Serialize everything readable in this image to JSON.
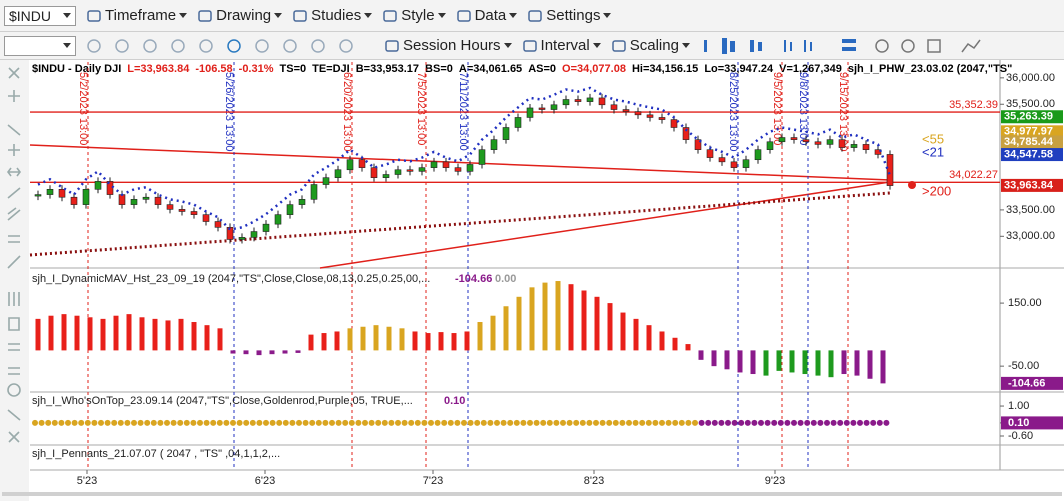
{
  "toolbar": {
    "symbol": "$INDU",
    "menus": [
      "Timeframe",
      "Drawing",
      "Studies",
      "Style",
      "Data",
      "Settings"
    ],
    "tools": [
      "Session Hours",
      "Interval",
      "Scaling"
    ]
  },
  "chart_data": [
    {
      "type": "candlestick",
      "header": [
        {
          "text": "$INDU - Daily  DJI",
          "color": "#000000"
        },
        {
          "text": "L=33,963.84",
          "color": "#e0201a"
        },
        {
          "text": "-106.58",
          "color": "#e0201a"
        },
        {
          "text": "-0.31%",
          "color": "#e0201a"
        },
        {
          "text": "TS=0",
          "color": "#000000"
        },
        {
          "text": "TE=DJI",
          "color": "#000000"
        },
        {
          "text": "B=33,953.17",
          "color": "#000000"
        },
        {
          "text": "BS=0",
          "color": "#000000"
        },
        {
          "text": "A=34,061.65",
          "color": "#000000"
        },
        {
          "text": "AS=0",
          "color": "#000000"
        },
        {
          "text": "O=34,077.08",
          "color": "#e0201a"
        },
        {
          "text": "Hi=34,156.15",
          "color": "#000000"
        },
        {
          "text": "Lo=33,947.24",
          "color": "#000000"
        },
        {
          "text": "V=1,267,349",
          "color": "#000000"
        },
        {
          "text": "sjh_I_PHW_23.03.02 (2047,\"TS\"",
          "color": "#000000"
        }
      ],
      "ylim": [
        32400,
        36300
      ],
      "yticks": [
        {
          "value": 36000,
          "label": "36,000.00"
        },
        {
          "value": 35500,
          "label": "35,500.00"
        },
        {
          "value": 33500,
          "label": "33,500.00"
        },
        {
          "value": 33000,
          "label": "33,000.00"
        }
      ],
      "closes": [
        33790,
        33890,
        33740,
        33600,
        33890,
        34040,
        33790,
        33600,
        33700,
        33740,
        33600,
        33510,
        33470,
        33410,
        33280,
        33170,
        32940,
        32980,
        33090,
        33230,
        33410,
        33600,
        33700,
        33980,
        34110,
        34260,
        34450,
        34300,
        34110,
        34170,
        34260,
        34230,
        34300,
        34410,
        34300,
        34230,
        34360,
        34640,
        34830,
        35060,
        35250,
        35430,
        35400,
        35490,
        35590,
        35550,
        35620,
        35490,
        35400,
        35360,
        35300,
        35250,
        35210,
        35060,
        34830,
        34640,
        34490,
        34410,
        34300,
        34450,
        34640,
        34790,
        34870,
        34830,
        34790,
        34740,
        34830,
        34680,
        34740,
        34640,
        34550,
        33960
      ],
      "up_color": "#1e9a1e",
      "down_color": "#e8201a",
      "levels": [
        {
          "value": 35352.39,
          "label": "35,352.39",
          "color": "#e0201a"
        },
        {
          "value": 34022.27,
          "label": "34,022.27",
          "color": "#e0201a"
        }
      ],
      "price_tags": [
        {
          "value": 35263.39,
          "label": "35,263.39",
          "color": "#1a9a1a"
        },
        {
          "value": 34977.97,
          "label": "34,977.97",
          "color": "#d9a520"
        },
        {
          "value": 34785.44,
          "label": "34,785.44",
          "color": "#c8a040"
        },
        {
          "value": 34547.58,
          "label": "34,547.58",
          "color": "#1f3fbf"
        },
        {
          "value": 33963.84,
          "label": "33,963.84",
          "color": "#d8201a"
        }
      ],
      "ma_labels": [
        {
          "text": "<55",
          "color": "#d9a520"
        },
        {
          "text": "<21",
          "color": "#2030c0"
        },
        {
          "text": ">200",
          "color": "#e0201a"
        }
      ],
      "events": [
        {
          "label": "5/2/2023 13:00",
          "color": "#e0201a"
        },
        {
          "label": "5/26/2023 13:00",
          "color": "#2030c0"
        },
        {
          "label": "6/20/2023 13:00",
          "color": "#e0201a"
        },
        {
          "label": "7/5/2023 13:00",
          "color": "#e0201a"
        },
        {
          "label": "7/11/2023 13:00",
          "color": "#2030c0"
        },
        {
          "label": "8/25/2023 13:00",
          "color": "#2030c0"
        },
        {
          "label": "9/5/2023 13:00",
          "color": "#e0201a"
        },
        {
          "label": "9/8/2023 13:00",
          "color": "#2030c0"
        },
        {
          "label": "9/15/2023 13:00",
          "color": "#e0201a"
        }
      ],
      "x_labels": [
        "5'23",
        "6'23",
        "7'23",
        "8'23",
        "9'23"
      ]
    },
    {
      "type": "bar",
      "title": "sjh_I_DynamicMAV_Hst_23_09_19 (2047,\"TS\",Close,Close,08,13,0.25,0.25,00,...",
      "last_values": [
        {
          "value": -104.66,
          "label": "-104.66",
          "color": "#8a1a8a"
        },
        {
          "value": 0,
          "label": "0.00",
          "color": "#999999"
        }
      ],
      "ylim": [
        -132,
        255
      ],
      "yticks": [
        {
          "value": 150,
          "label": "150.00"
        },
        {
          "value": -50,
          "label": "-50.00"
        }
      ],
      "values": [
        100,
        110,
        115,
        110,
        105,
        100,
        110,
        115,
        105,
        100,
        95,
        100,
        90,
        80,
        70,
        -10,
        -12,
        -15,
        -12,
        -10,
        -8,
        50,
        55,
        60,
        70,
        75,
        80,
        75,
        70,
        60,
        55,
        58,
        55,
        60,
        90,
        110,
        140,
        170,
        200,
        215,
        220,
        210,
        190,
        170,
        150,
        120,
        100,
        80,
        60,
        40,
        20,
        -30,
        -50,
        -60,
        -70,
        -75,
        -80,
        -65,
        -70,
        -75,
        -80,
        -85,
        -75,
        -80,
        -90,
        -104.66
      ],
      "colors": [
        "#e8201a",
        "#e8201a",
        "#e8201a",
        "#e8201a",
        "#e8201a",
        "#e8201a",
        "#e8201a",
        "#e8201a",
        "#e8201a",
        "#e8201a",
        "#e8201a",
        "#e8201a",
        "#e8201a",
        "#e8201a",
        "#e8201a",
        "#8a1a8a",
        "#8a1a8a",
        "#8a1a8a",
        "#8a1a8a",
        "#8a1a8a",
        "#8a1a8a",
        "#e8201a",
        "#e8201a",
        "#e8201a",
        "#d9a520",
        "#d9a520",
        "#d9a520",
        "#d9a520",
        "#d9a520",
        "#e8201a",
        "#e8201a",
        "#e8201a",
        "#e8201a",
        "#e8201a",
        "#d9a520",
        "#d9a520",
        "#d9a520",
        "#d9a520",
        "#d9a520",
        "#d9a520",
        "#d9a520",
        "#e8201a",
        "#e8201a",
        "#e8201a",
        "#e8201a",
        "#e8201a",
        "#e8201a",
        "#e8201a",
        "#e8201a",
        "#e8201a",
        "#e8201a",
        "#8a1a8a",
        "#8a1a8a",
        "#8a1a8a",
        "#8a1a8a",
        "#8a1a8a",
        "#1e9a1e",
        "#1e9a1e",
        "#1e9a1e",
        "#1e9a1e",
        "#1e9a1e",
        "#1e9a1e",
        "#8a1a8a",
        "#8a1a8a",
        "#8a1a8a",
        "#8a1a8a"
      ]
    },
    {
      "type": "dots",
      "title": "sjh_I_Who'sOnTop_23.09.14 (2047,\"TS\",Close,Goldenrod,Purple,05,  TRUE,...",
      "last_value": {
        "value": 0.1,
        "label": "0.10"
      },
      "ylim": [
        -1.08,
        1.75
      ],
      "yticks": [
        {
          "value": 1,
          "label": "1.00"
        },
        {
          "value": 0.1,
          "label": "0.10"
        },
        {
          "value": -0.6,
          "label": "-0.60"
        }
      ],
      "colors": [
        "#d9a520",
        "#8a1a8a"
      ]
    },
    {
      "type": "empty",
      "title": "sjh_I_Pennants_21.07.07 (  2047 ,  \"TS\" ,04,1,1,2,..."
    }
  ]
}
